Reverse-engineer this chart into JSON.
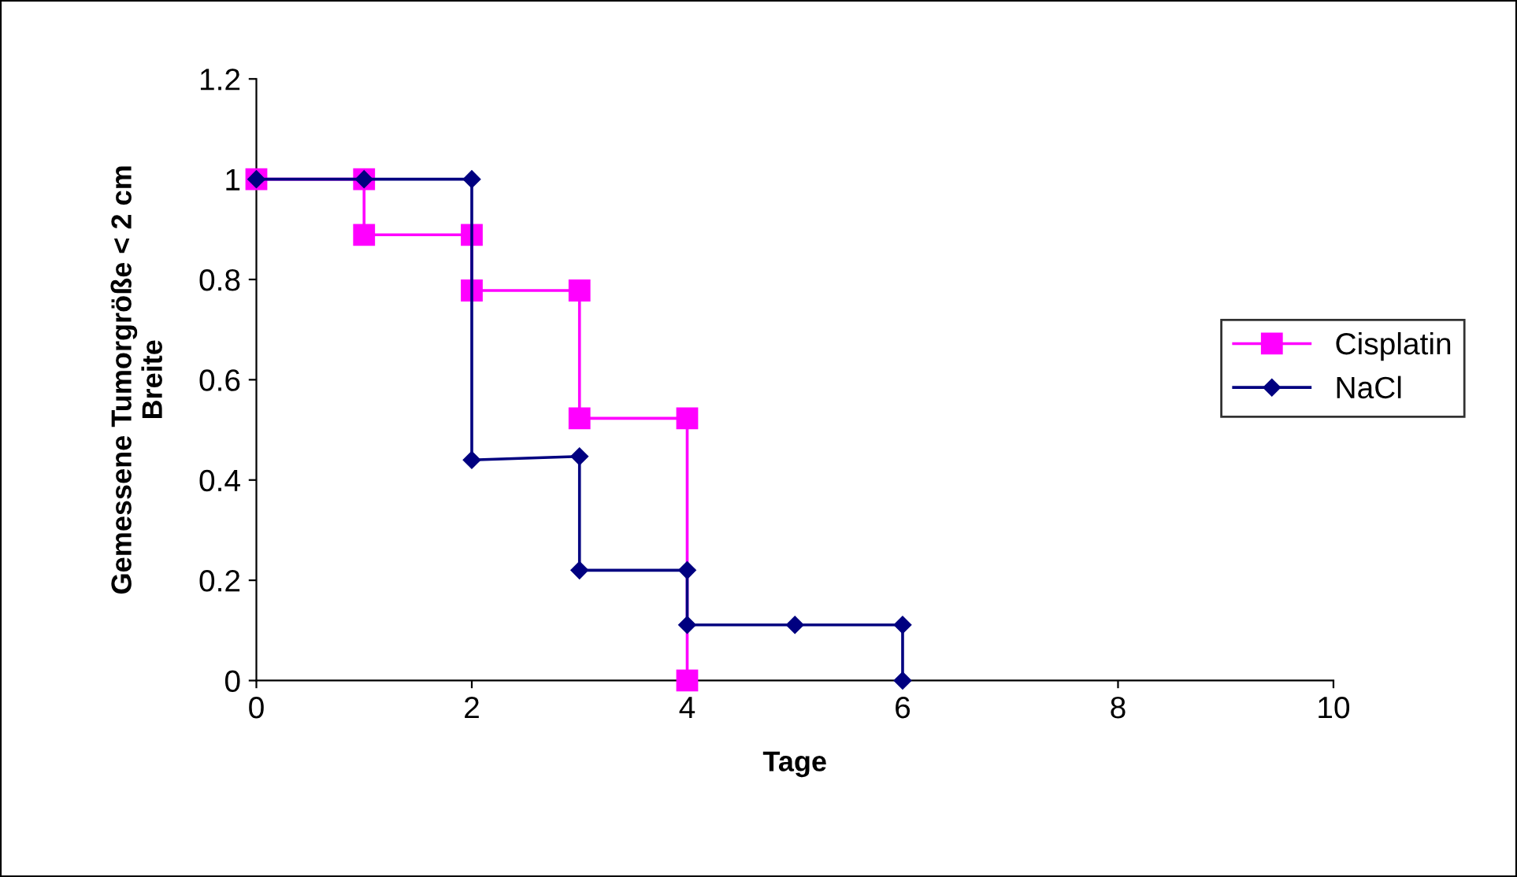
{
  "chart_data": {
    "type": "line",
    "xlabel": "Tage",
    "ylabel": "Gemessene Tumorgröße < 2 cm\nBreite",
    "xlim": [
      0,
      10
    ],
    "xticks": [
      0,
      2,
      4,
      6,
      8,
      10
    ],
    "ylim": [
      0,
      1.2
    ],
    "yticks": [
      0,
      0.2,
      0.4,
      0.6,
      0.8,
      1,
      1.2
    ],
    "grid": false,
    "legend": "right",
    "line_style": "solid",
    "series": [
      {
        "name": "Cisplatin",
        "color": "#ff00ff",
        "marker": "square",
        "x": [
          0,
          1,
          1,
          2,
          2,
          3,
          3,
          4,
          4
        ],
        "values": [
          1,
          1,
          0.889,
          0.889,
          0.778,
          0.778,
          0.523,
          0.523,
          0
        ]
      },
      {
        "name": "NaCl",
        "color": "#000080",
        "marker": "diamond",
        "x": [
          0,
          1,
          2,
          2,
          3,
          3,
          4,
          4,
          5,
          6,
          6
        ],
        "values": [
          1,
          1,
          1,
          0.44,
          0.447,
          0.22,
          0.22,
          0.111,
          0.111,
          0.111,
          0
        ]
      }
    ]
  }
}
